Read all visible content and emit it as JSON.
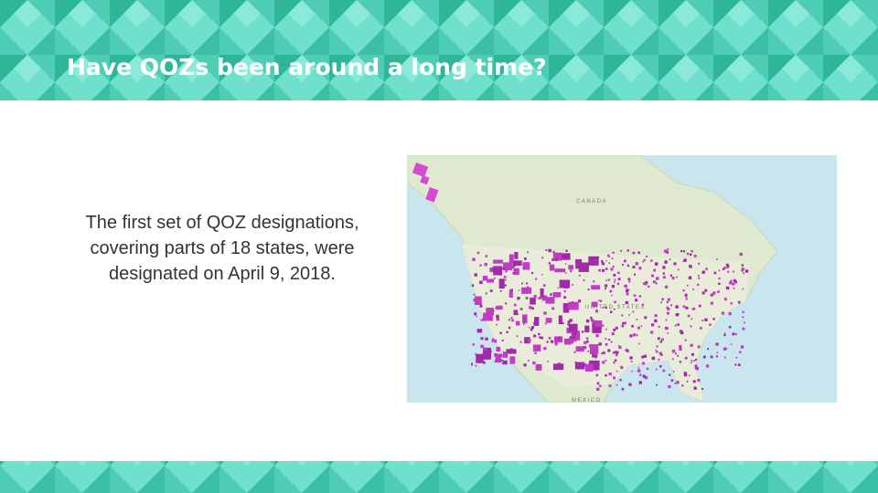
{
  "header": {
    "title": "Have QOZs been around a long time?"
  },
  "body": {
    "lines": [
      "The first set of QOZ designations,",
      "covering parts of 18 states, were",
      "designated on April 9, 2018."
    ]
  },
  "map": {
    "labels": [
      "CANADA",
      "UNITED STATES",
      "MEXICO"
    ]
  }
}
